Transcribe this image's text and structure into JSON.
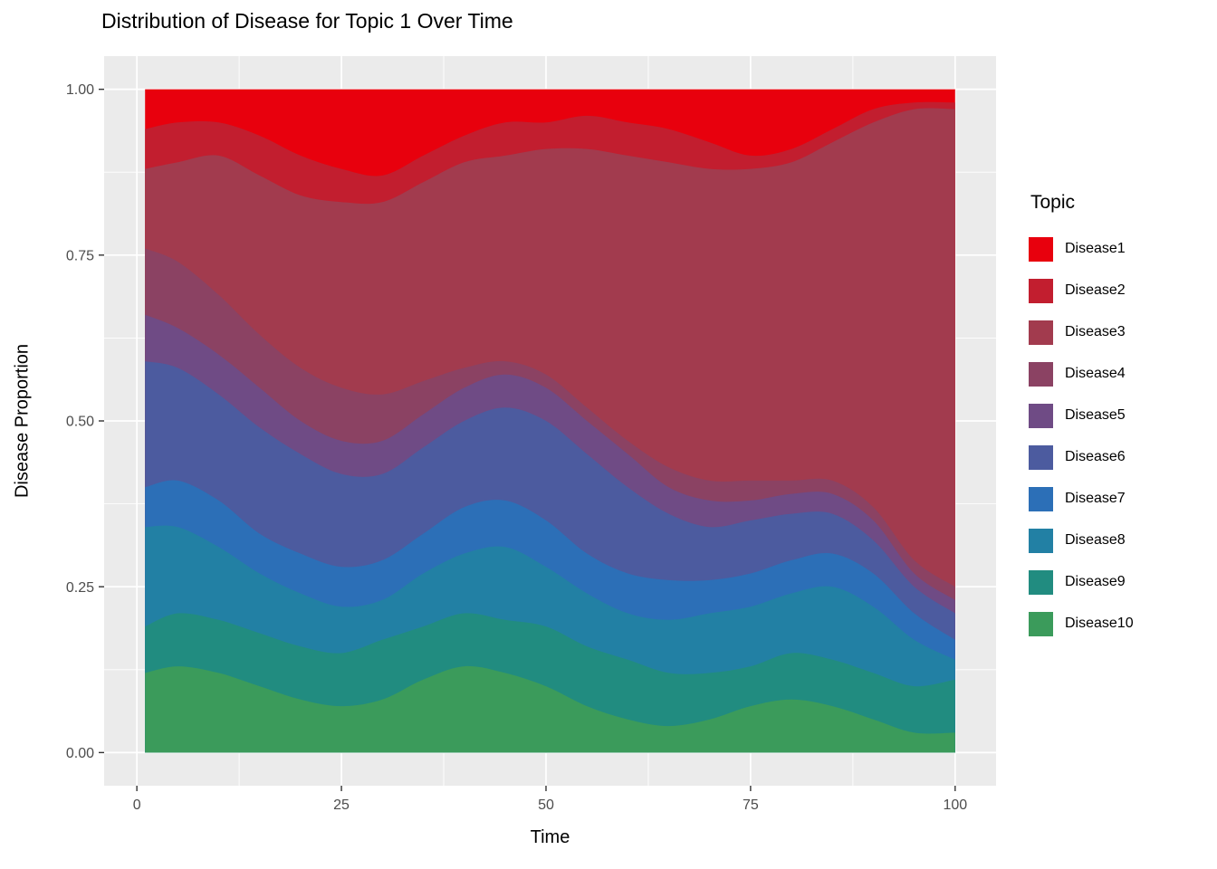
{
  "chart": {
    "title": "Distribution of Disease for Topic 1 Over Time",
    "xlabel": "Time",
    "ylabel": "Disease Proportion",
    "legend_title": "Topic"
  },
  "chart_data": {
    "type": "area",
    "stacked": true,
    "normalized": true,
    "title": "Distribution of Disease for Topic 1 Over Time",
    "xlabel": "Time",
    "ylabel": "Disease Proportion",
    "legend_position": "right",
    "grid": {
      "major": true,
      "minor": true
    },
    "panel_bg": "#EBEBEB",
    "grid_color": "#FFFFFF",
    "tick_color": "#333333",
    "axis_text_color": "#4D4D4D",
    "xlim": [
      1,
      100
    ],
    "ylim": [
      0,
      1
    ],
    "x_domain": [
      -4,
      105
    ],
    "y_domain": [
      -0.05,
      1.05
    ],
    "x_ticks": {
      "values": [
        0,
        25,
        50,
        75,
        100
      ],
      "labels": [
        "0",
        "25",
        "50",
        "75",
        "100"
      ]
    },
    "y_ticks": {
      "values": [
        0,
        0.25,
        0.5,
        0.75,
        1.0
      ],
      "labels": [
        "0.00",
        "0.25",
        "0.50",
        "0.75",
        "1.00"
      ]
    },
    "x": [
      1,
      5,
      10,
      15,
      20,
      25,
      30,
      35,
      40,
      45,
      50,
      55,
      60,
      65,
      70,
      75,
      80,
      85,
      90,
      95,
      100
    ],
    "series": [
      {
        "name": "Disease1",
        "color": "#E8000D",
        "values": [
          0.06,
          0.05,
          0.05,
          0.07,
          0.1,
          0.12,
          0.13,
          0.1,
          0.07,
          0.05,
          0.05,
          0.04,
          0.05,
          0.06,
          0.08,
          0.1,
          0.09,
          0.06,
          0.03,
          0.02,
          0.02
        ]
      },
      {
        "name": "Disease2",
        "color": "#C21E2F",
        "values": [
          0.06,
          0.06,
          0.05,
          0.06,
          0.06,
          0.05,
          0.04,
          0.04,
          0.04,
          0.05,
          0.04,
          0.05,
          0.05,
          0.05,
          0.04,
          0.02,
          0.02,
          0.02,
          0.02,
          0.01,
          0.01
        ]
      },
      {
        "name": "Disease3",
        "color": "#A23B4E",
        "values": [
          0.12,
          0.15,
          0.21,
          0.24,
          0.26,
          0.28,
          0.29,
          0.3,
          0.31,
          0.31,
          0.34,
          0.39,
          0.43,
          0.46,
          0.47,
          0.47,
          0.48,
          0.51,
          0.58,
          0.68,
          0.72
        ]
      },
      {
        "name": "Disease4",
        "color": "#8B4263",
        "values": [
          0.1,
          0.1,
          0.09,
          0.08,
          0.08,
          0.08,
          0.07,
          0.05,
          0.03,
          0.02,
          0.02,
          0.02,
          0.02,
          0.03,
          0.03,
          0.03,
          0.02,
          0.02,
          0.02,
          0.02,
          0.02
        ]
      },
      {
        "name": "Disease5",
        "color": "#6F4B85",
        "values": [
          0.07,
          0.06,
          0.06,
          0.06,
          0.05,
          0.05,
          0.05,
          0.05,
          0.05,
          0.05,
          0.05,
          0.05,
          0.05,
          0.04,
          0.04,
          0.03,
          0.03,
          0.03,
          0.03,
          0.02,
          0.02
        ]
      },
      {
        "name": "Disease6",
        "color": "#4C5B9F",
        "values": [
          0.19,
          0.17,
          0.16,
          0.16,
          0.15,
          0.14,
          0.13,
          0.13,
          0.13,
          0.14,
          0.15,
          0.15,
          0.13,
          0.1,
          0.08,
          0.08,
          0.07,
          0.06,
          0.05,
          0.04,
          0.04
        ]
      },
      {
        "name": "Disease7",
        "color": "#2C6FB7",
        "values": [
          0.06,
          0.07,
          0.07,
          0.06,
          0.06,
          0.06,
          0.06,
          0.06,
          0.07,
          0.07,
          0.07,
          0.06,
          0.06,
          0.06,
          0.05,
          0.05,
          0.05,
          0.05,
          0.05,
          0.04,
          0.03
        ]
      },
      {
        "name": "Disease8",
        "color": "#2280A4",
        "values": [
          0.15,
          0.13,
          0.11,
          0.09,
          0.08,
          0.07,
          0.06,
          0.08,
          0.09,
          0.11,
          0.09,
          0.08,
          0.07,
          0.08,
          0.09,
          0.09,
          0.09,
          0.11,
          0.1,
          0.07,
          0.03
        ]
      },
      {
        "name": "Disease9",
        "color": "#218C80",
        "values": [
          0.07,
          0.08,
          0.08,
          0.08,
          0.08,
          0.08,
          0.09,
          0.08,
          0.08,
          0.08,
          0.09,
          0.09,
          0.09,
          0.08,
          0.07,
          0.06,
          0.07,
          0.07,
          0.07,
          0.07,
          0.08
        ]
      },
      {
        "name": "Disease10",
        "color": "#3B9B5B",
        "values": [
          0.12,
          0.13,
          0.12,
          0.1,
          0.08,
          0.07,
          0.08,
          0.11,
          0.13,
          0.12,
          0.1,
          0.07,
          0.05,
          0.04,
          0.05,
          0.07,
          0.08,
          0.07,
          0.05,
          0.03,
          0.03
        ]
      }
    ]
  }
}
